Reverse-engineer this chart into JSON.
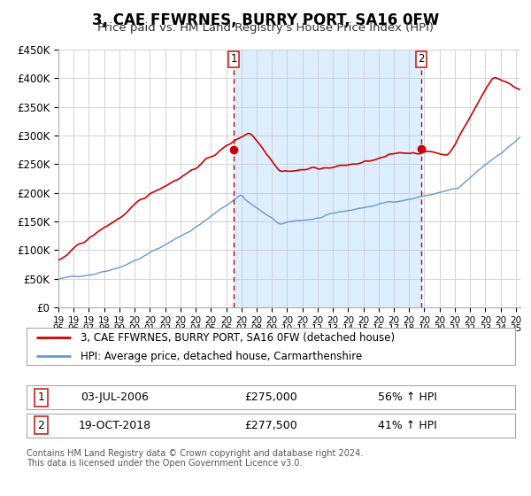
{
  "title": "3, CAE FFWRNES, BURRY PORT, SA16 0FW",
  "subtitle": "Price paid vs. HM Land Registry's House Price Index (HPI)",
  "ylim": [
    0,
    450000
  ],
  "yticks": [
    0,
    50000,
    100000,
    150000,
    200000,
    250000,
    300000,
    350000,
    400000,
    450000
  ],
  "ytick_labels": [
    "£0",
    "£50K",
    "£100K",
    "£150K",
    "£200K",
    "£250K",
    "£300K",
    "£350K",
    "£400K",
    "£450K"
  ],
  "xlim_start": 1995.0,
  "xlim_end": 2025.3,
  "xtick_years": [
    1995,
    1996,
    1997,
    1998,
    1999,
    2000,
    2001,
    2002,
    2003,
    2004,
    2005,
    2006,
    2007,
    2008,
    2009,
    2010,
    2011,
    2012,
    2013,
    2014,
    2015,
    2016,
    2017,
    2018,
    2019,
    2020,
    2021,
    2022,
    2023,
    2024,
    2025
  ],
  "marker1_x": 2006.5,
  "marker1_y": 275000,
  "marker2_x": 2018.8,
  "marker2_y": 277500,
  "shade_start": 2006.5,
  "shade_end": 2018.8,
  "legend1_label": "3, CAE FFWRNES, BURRY PORT, SA16 0FW (detached house)",
  "legend2_label": "HPI: Average price, detached house, Carmarthenshire",
  "table_row1": [
    "1",
    "03-JUL-2006",
    "£275,000",
    "56% ↑ HPI"
  ],
  "table_row2": [
    "2",
    "19-OCT-2018",
    "£277,500",
    "41% ↑ HPI"
  ],
  "footer1": "Contains HM Land Registry data © Crown copyright and database right 2024.",
  "footer2": "This data is licensed under the Open Government Licence v3.0.",
  "red_color": "#cc0000",
  "blue_color": "#6699cc",
  "shade_color": "#ddeeff",
  "bg_color": "#ffffff",
  "grid_color": "#cccccc"
}
